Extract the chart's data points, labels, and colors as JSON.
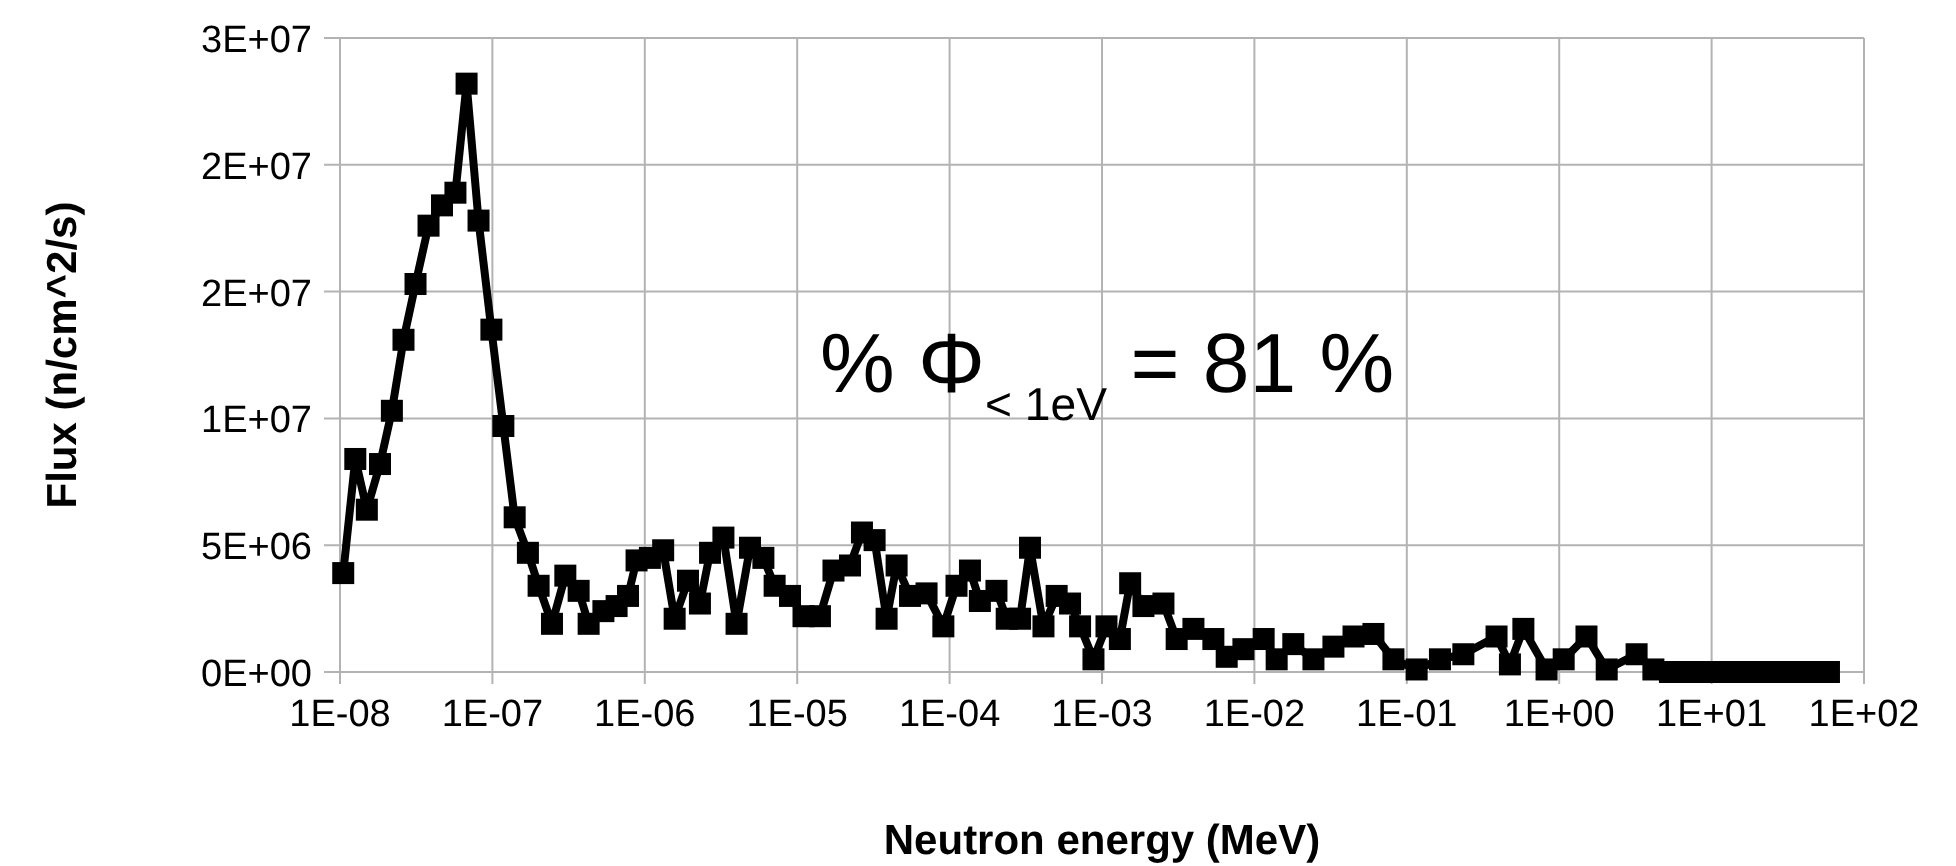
{
  "chart_data": {
    "type": "line",
    "xlabel": "Neutron energy (MeV)",
    "ylabel": "Flux (n/cm^2/s)",
    "log": "x",
    "xlim": [
      1e-08,
      100
    ],
    "xticks": [
      {
        "value": 1e-08,
        "label": "1E-08"
      },
      {
        "value": 1e-07,
        "label": "1E-07"
      },
      {
        "value": 1e-06,
        "label": "1E-06"
      },
      {
        "value": 1e-05,
        "label": "1E-05"
      },
      {
        "value": 0.0001,
        "label": "1E-04"
      },
      {
        "value": 0.001,
        "label": "1E-03"
      },
      {
        "value": 0.01,
        "label": "1E-02"
      },
      {
        "value": 0.1,
        "label": "1E-01"
      },
      {
        "value": 1,
        "label": "1E+00"
      },
      {
        "value": 10,
        "label": "1E+01"
      },
      {
        "value": 100,
        "label": "1E+02"
      }
    ],
    "ylim": [
      0,
      25000000
    ],
    "yticks": [
      {
        "value": 0,
        "label": "0E+00"
      },
      {
        "value": 5000000,
        "label": "5E+06"
      },
      {
        "value": 10000000,
        "label": "1E+07"
      },
      {
        "value": 15000000,
        "label": "2E+07"
      },
      {
        "value": 20000000,
        "label": "2E+07"
      },
      {
        "value": 25000000,
        "label": "3E+07"
      }
    ],
    "grid": true,
    "marker": "square",
    "line_style": "solid",
    "annotations": [
      "%  Φ$_{< 1eV}$ = 81 %"
    ],
    "series": [
      {
        "color": "#000000",
        "x": [
          1.05e-08,
          1.26e-08,
          1.5e-08,
          1.83e-08,
          2.19e-08,
          2.61e-08,
          3.13e-08,
          3.81e-08,
          4.67e-08,
          5.72e-08,
          6.77e-08,
          8.11e-08,
          9.85e-08,
          1.18e-07,
          1.4e-07,
          1.71e-07,
          2.01e-07,
          2.46e-07,
          3.01e-07,
          3.68e-07,
          4.28e-07,
          5.35e-07,
          6.53e-07,
          7.76e-07,
          8.83e-07,
          1.08e-06,
          1.32e-06,
          1.57e-06,
          1.92e-06,
          2.3e-06,
          2.68e-06,
          3.28e-06,
          4e-06,
          4.9e-06,
          6e-06,
          7.11e-06,
          8.97e-06,
          1.1e-05,
          1.41e-05,
          1.73e-05,
          2.22e-05,
          2.66e-05,
          3.22e-05,
          3.86e-05,
          4.49e-05,
          5.5e-05,
          7.06e-05,
          9.1e-05,
          0.000111,
          0.000136,
          0.000158,
          0.000203,
          0.000237,
          0.00029,
          0.000337,
          0.000413,
          0.000504,
          0.000617,
          0.000718,
          0.000879,
          0.00107,
          0.00131,
          0.00153,
          0.00187,
          0.00253,
          0.00309,
          0.00398,
          0.00538,
          0.00658,
          0.00847,
          0.0115,
          0.014,
          0.018,
          0.0244,
          0.033,
          0.0447,
          0.0604,
          0.0817,
          0.116,
          0.165,
          0.235,
          0.388,
          0.475,
          0.582,
          0.826,
          1.07,
          1.51,
          2.05,
          3.22,
          4.15,
          5.33,
          7.21,
          9.75,
          13.2,
          17.8,
          24,
          32.4,
          43.7,
          58.9
        ],
        "values": [
          3900000,
          8400000,
          6400000,
          8200000,
          10300000,
          13100000,
          15300000,
          17600000,
          18400000,
          18900000,
          23200000,
          17800000,
          13500000,
          9700000,
          6100000,
          4700000,
          3400000,
          1900000,
          3800000,
          3200000,
          1900000,
          2400000,
          2600000,
          3000000,
          4400000,
          4500000,
          4800000,
          2100000,
          3600000,
          2700000,
          4700000,
          5300000,
          1900000,
          4900000,
          4500000,
          3400000,
          3000000,
          2200000,
          2200000,
          4000000,
          4200000,
          5500000,
          5200000,
          2100000,
          4200000,
          3000000,
          3100000,
          1800000,
          3400000,
          4000000,
          2800000,
          3200000,
          2100000,
          2100000,
          4900000,
          1800000,
          3000000,
          2700000,
          1800000,
          500000,
          1800000,
          1300000,
          3500000,
          2600000,
          2700000,
          1300000,
          1700000,
          1300000,
          600000,
          900000,
          1300000,
          500000,
          1100000,
          500000,
          1000000,
          1400000,
          1500000,
          500000,
          100000,
          500000,
          700000,
          1400000,
          300000,
          1700000,
          100000,
          500000,
          1400000,
          100000,
          700000,
          100000,
          0,
          0,
          0,
          0,
          0,
          0,
          0,
          0,
          0
        ]
      }
    ]
  }
}
